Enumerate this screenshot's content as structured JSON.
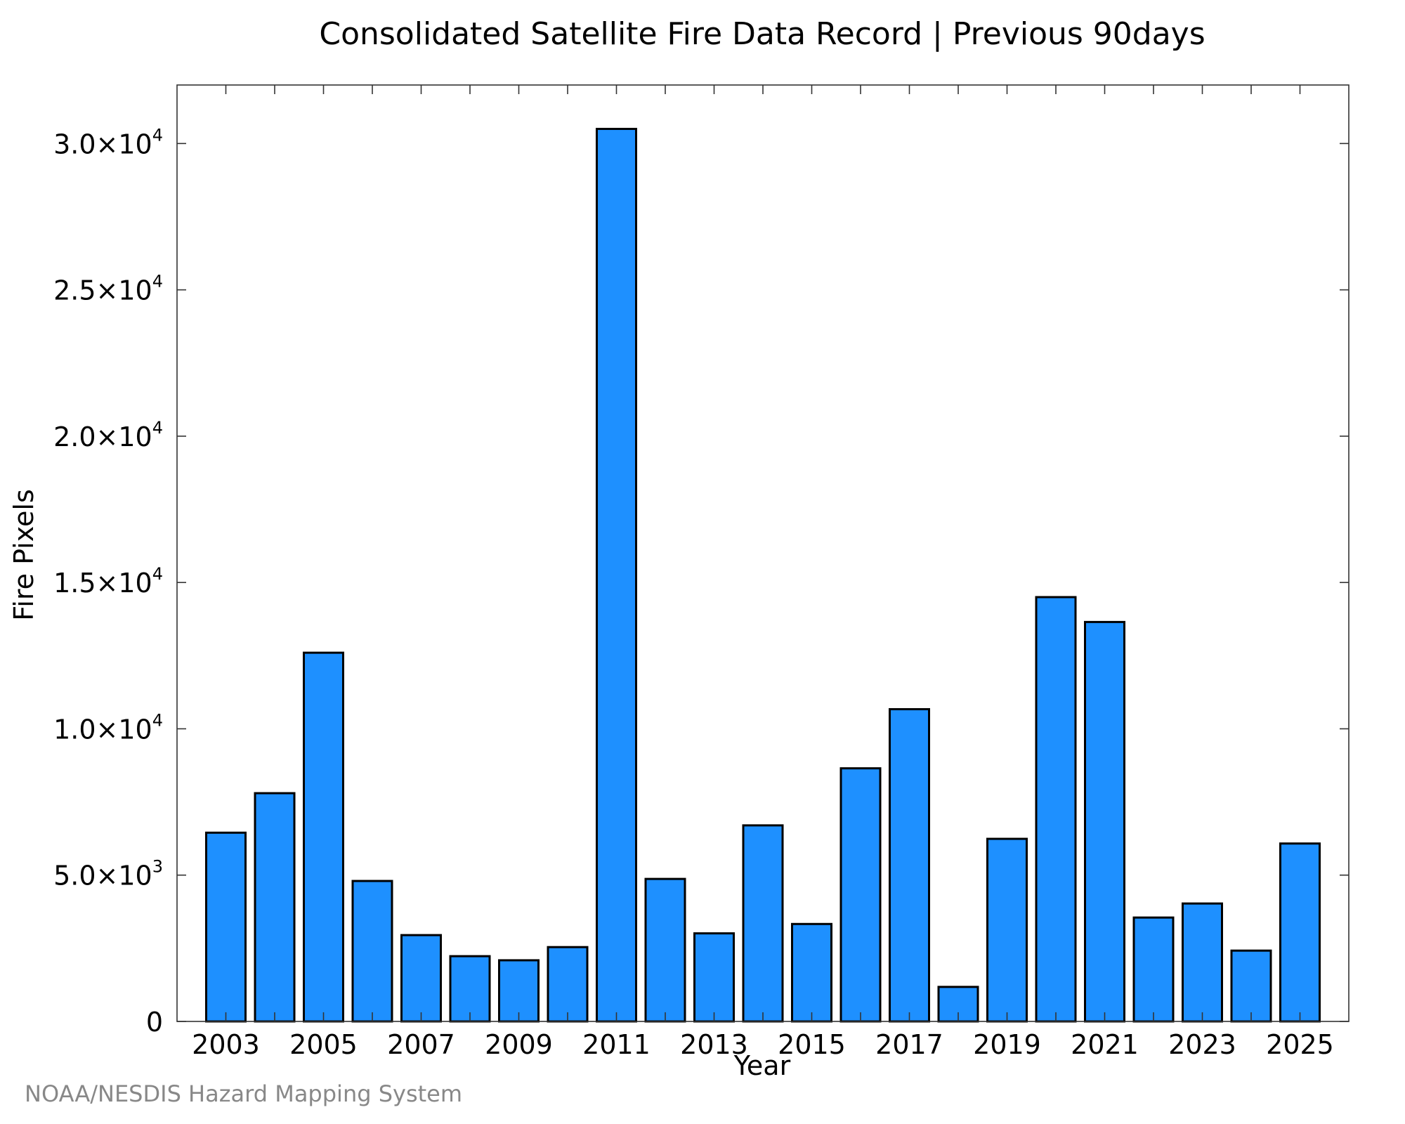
{
  "chart_data": {
    "type": "bar",
    "title": "Consolidated Satellite Fire Data Record | Previous 90days",
    "xlabel": "Year",
    "ylabel": "Fire Pixels",
    "categories": [
      "2003",
      "2004",
      "2005",
      "2006",
      "2007",
      "2008",
      "2009",
      "2010",
      "2011",
      "2012",
      "2013",
      "2014",
      "2015",
      "2016",
      "2017",
      "2018",
      "2019",
      "2020",
      "2021",
      "2022",
      "2023",
      "2024",
      "2025"
    ],
    "values": [
      6450,
      7800,
      12600,
      4800,
      2950,
      2230,
      2090,
      2540,
      30500,
      4870,
      3010,
      6700,
      3330,
      8650,
      10670,
      1180,
      6240,
      14500,
      13650,
      3550,
      4030,
      2420,
      6080
    ],
    "x_tick_labels": [
      "2003",
      "2005",
      "2007",
      "2009",
      "2011",
      "2013",
      "2015",
      "2017",
      "2019",
      "2021",
      "2023",
      "2025"
    ],
    "y_ticks": [
      {
        "value": 0,
        "mantissa": "0",
        "exponent": ""
      },
      {
        "value": 5000,
        "mantissa": "5.0×10",
        "exponent": "3"
      },
      {
        "value": 10000,
        "mantissa": "1.0×10",
        "exponent": "4"
      },
      {
        "value": 15000,
        "mantissa": "1.5×10",
        "exponent": "4"
      },
      {
        "value": 20000,
        "mantissa": "2.0×10",
        "exponent": "4"
      },
      {
        "value": 25000,
        "mantissa": "2.5×10",
        "exponent": "4"
      },
      {
        "value": 30000,
        "mantissa": "3.0×10",
        "exponent": "4"
      }
    ],
    "ylim": [
      0,
      32000
    ],
    "bar_color": "#1e90ff",
    "bar_edge_color": "#000000",
    "grid": false,
    "legend": "none"
  },
  "credit": "NOAA/NESDIS Hazard Mapping System"
}
